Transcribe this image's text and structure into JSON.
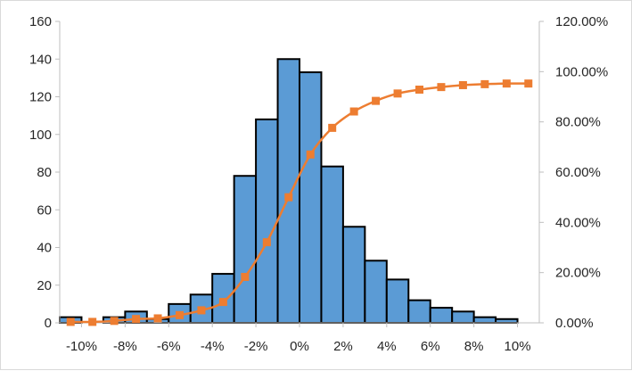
{
  "chart_data": {
    "type": "bar",
    "title": "",
    "xlabel": "",
    "ylabel": "",
    "x": [
      -0.105,
      -0.095,
      -0.085,
      -0.075,
      -0.065,
      -0.055,
      -0.045,
      -0.035,
      -0.025,
      -0.015,
      -0.005,
      0.005,
      0.015,
      0.025,
      0.035,
      0.045,
      0.055,
      0.065,
      0.075,
      0.085,
      0.095,
      0.105
    ],
    "bin_width": 0.01,
    "series": [
      {
        "kind": "bar",
        "axis": "left",
        "color": "#5b9bd5",
        "edge_color": "#000000",
        "values": [
          3,
          0,
          3,
          6,
          2,
          10,
          15,
          26,
          78,
          108,
          140,
          133,
          83,
          51,
          33,
          23,
          12,
          8,
          6,
          3,
          2,
          0
        ]
      },
      {
        "kind": "line",
        "axis": "right",
        "color": "#ed7d31",
        "marker": "square",
        "values": [
          0.38,
          0.38,
          0.77,
          1.53,
          1.79,
          3.07,
          4.99,
          8.31,
          18.29,
          32.1,
          50.0,
          67.01,
          77.62,
          84.14,
          88.36,
          91.3,
          92.84,
          93.86,
          94.63,
          95.01,
          95.27,
          95.27
        ]
      }
    ],
    "x_ticks": [
      {
        "value": -0.1,
        "label": "-10%"
      },
      {
        "value": -0.08,
        "label": "-8%"
      },
      {
        "value": -0.06,
        "label": "-6%"
      },
      {
        "value": -0.04,
        "label": "-4%"
      },
      {
        "value": -0.02,
        "label": "-2%"
      },
      {
        "value": 0.0,
        "label": "0%"
      },
      {
        "value": 0.02,
        "label": "2%"
      },
      {
        "value": 0.04,
        "label": "4%"
      },
      {
        "value": 0.06,
        "label": "6%"
      },
      {
        "value": 0.08,
        "label": "8%"
      },
      {
        "value": 0.1,
        "label": "10%"
      }
    ],
    "xlim": [
      -0.11,
      0.11
    ],
    "y_left": {
      "lim": [
        0,
        160
      ],
      "ticks": [
        {
          "value": 0,
          "label": "0"
        },
        {
          "value": 20,
          "label": "20"
        },
        {
          "value": 40,
          "label": "40"
        },
        {
          "value": 60,
          "label": "60"
        },
        {
          "value": 80,
          "label": "80"
        },
        {
          "value": 100,
          "label": "100"
        },
        {
          "value": 120,
          "label": "120"
        },
        {
          "value": 140,
          "label": "140"
        },
        {
          "value": 160,
          "label": "160"
        }
      ]
    },
    "y_right": {
      "lim": [
        0,
        120
      ],
      "ticks": [
        {
          "value": 0,
          "label": "0.00%"
        },
        {
          "value": 20,
          "label": "20.00%"
        },
        {
          "value": 40,
          "label": "40.00%"
        },
        {
          "value": 60,
          "label": "60.00%"
        },
        {
          "value": 80,
          "label": "80.00%"
        },
        {
          "value": 100,
          "label": "100.00%"
        },
        {
          "value": 120,
          "label": "120.00%"
        }
      ]
    },
    "grid": false,
    "legend": "none"
  }
}
